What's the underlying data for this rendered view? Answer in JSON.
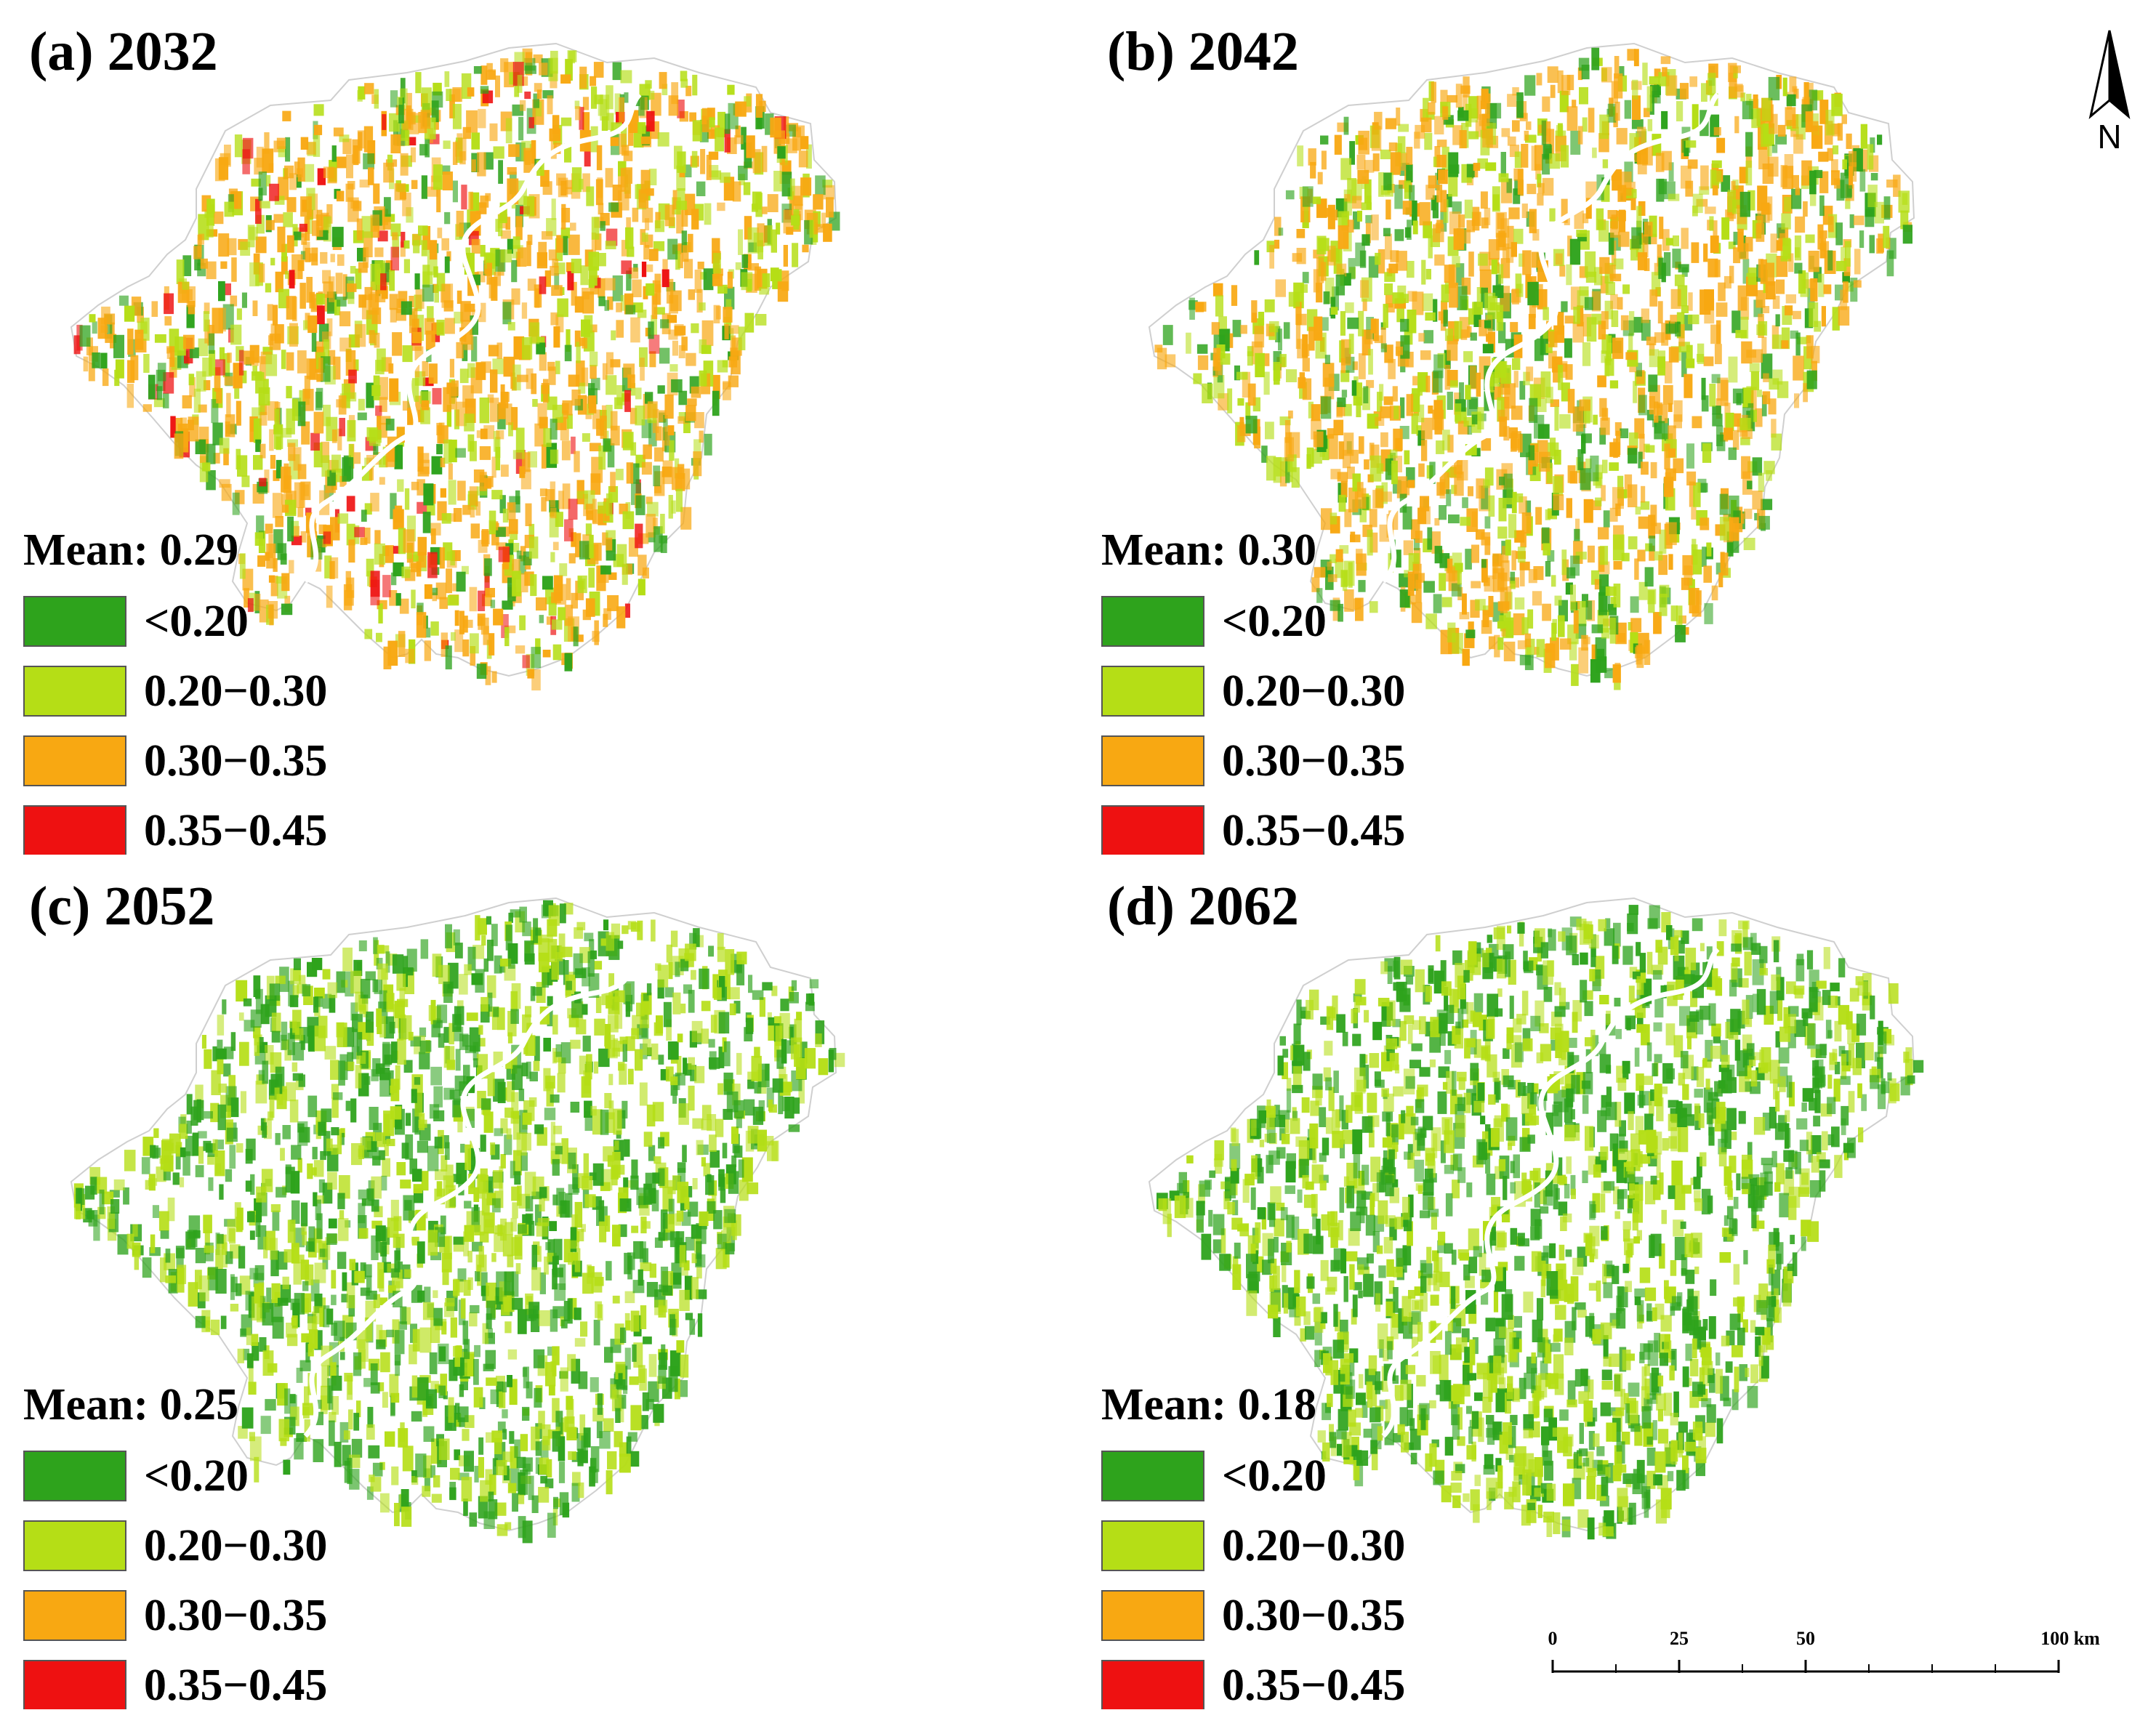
{
  "legend_classes": [
    {
      "label": "<0.20",
      "color": "#2ea31c"
    },
    {
      "label": "0.20−0.30",
      "color": "#b5de16"
    },
    {
      "label": "0.30−0.35",
      "color": "#f8a812"
    },
    {
      "label": "0.35−0.45",
      "color": "#ee1111"
    }
  ],
  "panels": [
    {
      "id": "a",
      "title": "(a) 2032",
      "mean_label": "Mean: 0.29",
      "mean": 0.29,
      "dominant": [
        "#f8a812",
        "#b5de16",
        "#2ea31c",
        "#ee1111"
      ]
    },
    {
      "id": "b",
      "title": "(b) 2042",
      "mean_label": "Mean: 0.30",
      "mean": 0.3,
      "dominant": [
        "#f8a812",
        "#b5de16",
        "#2ea31c"
      ]
    },
    {
      "id": "c",
      "title": "(c) 2052",
      "mean_label": "Mean: 0.25",
      "mean": 0.25,
      "dominant": [
        "#b5de16",
        "#2ea31c"
      ]
    },
    {
      "id": "d",
      "title": "(d) 2062",
      "mean_label": "Mean: 0.18",
      "mean": 0.18,
      "dominant": [
        "#2ea31c",
        "#b5de16"
      ]
    }
  ],
  "north_arrow": {
    "label": "N"
  },
  "scale_bar": {
    "ticks": [
      "0",
      "25",
      "50",
      "100 km"
    ]
  }
}
